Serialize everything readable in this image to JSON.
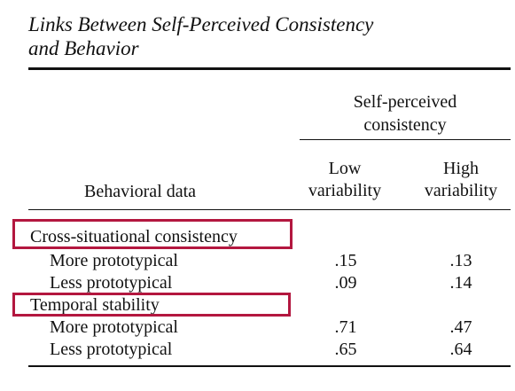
{
  "title_line1": "Links Between Self-Perceived Consistency",
  "title_line2": "and Behavior",
  "spanner": {
    "line1": "Self-perceived",
    "line2": "consistency"
  },
  "columns": {
    "stub": "Behavioral data",
    "low_line1": "Low",
    "low_line2": "variability",
    "high_line1": "High",
    "high_line2": "variability"
  },
  "groups": [
    {
      "label": "Cross-situational consistency",
      "rows": [
        {
          "label": "More prototypical",
          "low": ".15",
          "high": ".13"
        },
        {
          "label": "Less prototypical",
          "low": ".09",
          "high": ".14"
        }
      ]
    },
    {
      "label": "Temporal stability",
      "rows": [
        {
          "label": "More prototypical",
          "low": ".71",
          "high": ".47"
        },
        {
          "label": "Less prototypical",
          "low": ".65",
          "high": ".64"
        }
      ]
    }
  ],
  "highlight_color": "#b3173f"
}
